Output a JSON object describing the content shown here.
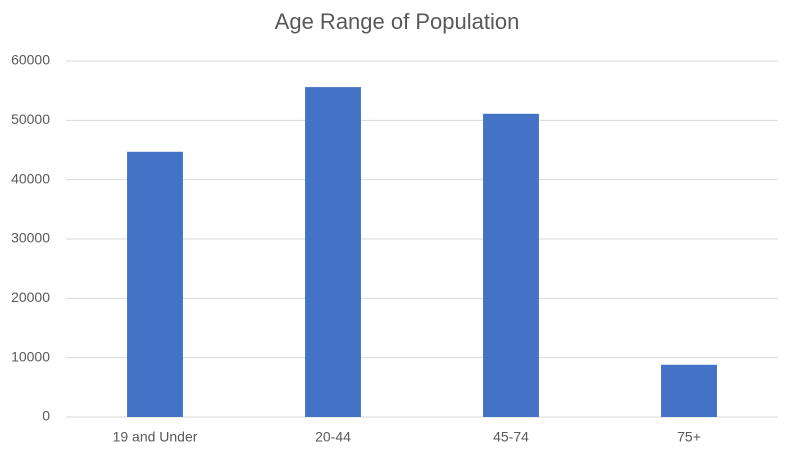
{
  "chart_data": {
    "type": "bar",
    "title": "Age Range of Population",
    "categories": [
      "19 and Under",
      "20-44",
      "45-74",
      "75+"
    ],
    "values": [
      44700,
      55600,
      51100,
      8800
    ],
    "color": "#4472c4",
    "ylim": [
      0,
      60000
    ],
    "yticks": [
      0,
      10000,
      20000,
      30000,
      40000,
      50000,
      60000
    ],
    "grid": true
  }
}
